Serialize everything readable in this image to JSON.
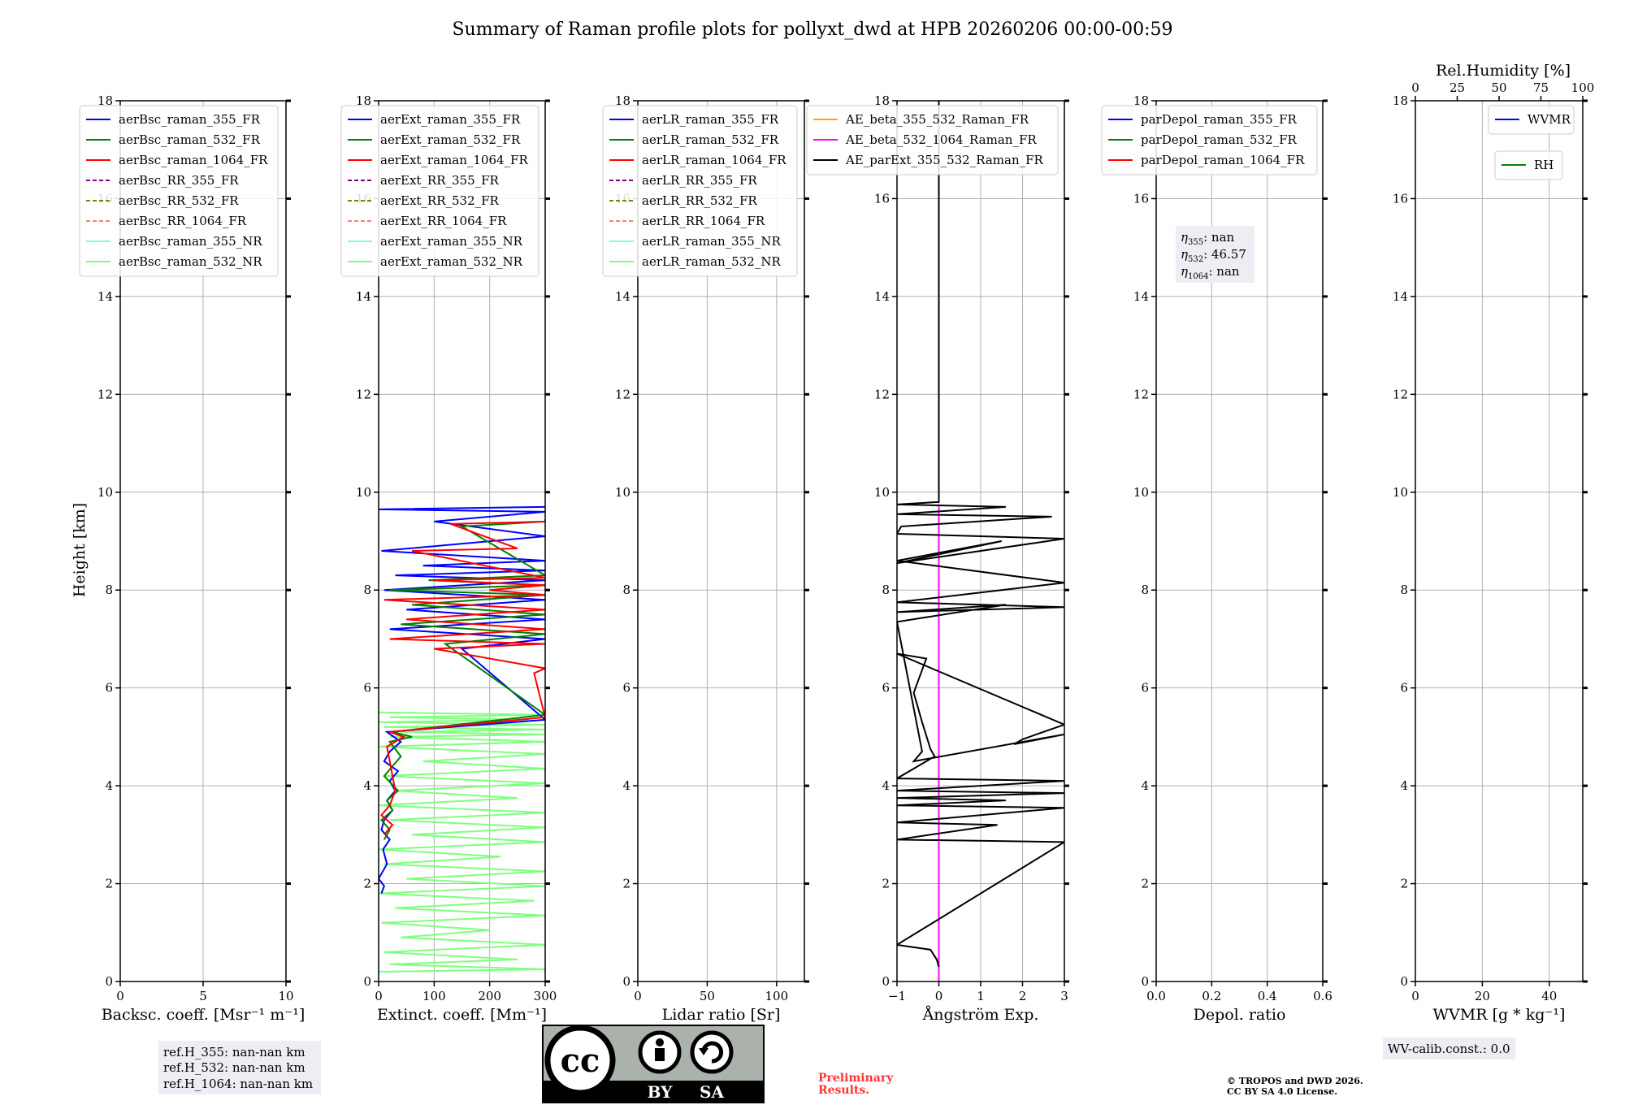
{
  "title": "Summary of Raman profile plots for pollyxt_dwd at HPB 20260206 00:00-00:59",
  "y_label": "Height [km]",
  "colors": {
    "blue": "#0000ff",
    "green": "#008000",
    "red": "#ff0000",
    "purple": "#800080",
    "olive": "#808000",
    "salmon": "#fa8072",
    "cyan": "#7fffd4",
    "lightgreen": "#7fff7f",
    "orange": "#ffa500",
    "magenta": "#ff00ff",
    "black": "#000000",
    "prelim": "#ff3333"
  },
  "chart_data": [
    {
      "type": "line",
      "xlabel": "Backsc. coeff. [Msr⁻¹ m⁻¹]",
      "xlim": [
        0,
        10
      ],
      "ylim": [
        0,
        18
      ],
      "xticks": [
        "0",
        "5",
        "10"
      ],
      "yticks": [
        "0",
        "2",
        "4",
        "6",
        "8",
        "10",
        "12",
        "14",
        "16",
        "18"
      ],
      "legend": [
        {
          "label": "aerBsc_raman_355_FR",
          "color": "blue",
          "dash": false
        },
        {
          "label": "aerBsc_raman_532_FR",
          "color": "green",
          "dash": false
        },
        {
          "label": "aerBsc_raman_1064_FR",
          "color": "red",
          "dash": false
        },
        {
          "label": "aerBsc_RR_355_FR",
          "color": "purple",
          "dash": true
        },
        {
          "label": "aerBsc_RR_532_FR",
          "color": "olive",
          "dash": true
        },
        {
          "label": "aerBsc_RR_1064_FR",
          "color": "salmon",
          "dash": true
        },
        {
          "label": "aerBsc_raman_355_NR",
          "color": "cyan",
          "dash": false
        },
        {
          "label": "aerBsc_raman_532_NR",
          "color": "lightgreen",
          "dash": false
        }
      ],
      "series": []
    },
    {
      "type": "line",
      "xlabel": "Extinct. coeff. [Mm⁻¹]",
      "xlim": [
        0,
        300
      ],
      "ylim": [
        0,
        18
      ],
      "xticks": [
        "0",
        "100",
        "200",
        "300"
      ],
      "yticks": [
        "0",
        "2",
        "4",
        "6",
        "8",
        "10",
        "12",
        "14",
        "16",
        "18"
      ],
      "legend": [
        {
          "label": "aerExt_raman_355_FR",
          "color": "blue",
          "dash": false
        },
        {
          "label": "aerExt_raman_532_FR",
          "color": "green",
          "dash": false
        },
        {
          "label": "aerExt_raman_1064_FR",
          "color": "red",
          "dash": false
        },
        {
          "label": "aerExt_RR_355_FR",
          "color": "purple",
          "dash": true
        },
        {
          "label": "aerExt_RR_532_FR",
          "color": "olive",
          "dash": true
        },
        {
          "label": "aerExt_RR_1064_FR",
          "color": "salmon",
          "dash": true
        },
        {
          "label": "aerExt_raman_355_NR",
          "color": "cyan",
          "dash": false
        },
        {
          "label": "aerExt_raman_532_NR",
          "color": "lightgreen",
          "dash": false
        }
      ],
      "series": [
        {
          "name": "aerExt_raman_532_NR",
          "color": "lightgreen",
          "x": [
            0,
            300,
            20,
            250,
            10,
            300,
            40,
            200,
            5,
            300,
            30,
            280,
            0,
            300,
            50,
            300,
            10,
            220,
            0,
            300,
            60,
            300,
            20,
            300,
            0,
            250,
            30,
            300,
            10,
            300,
            80,
            300,
            0,
            300,
            20,
            300,
            40,
            300,
            10,
            300,
            0,
            270,
            20,
            300,
            0
          ],
          "y": [
            0.2,
            0.25,
            0.35,
            0.45,
            0.6,
            0.75,
            0.9,
            1.05,
            1.2,
            1.35,
            1.5,
            1.65,
            1.8,
            1.95,
            2.1,
            2.25,
            2.4,
            2.55,
            2.7,
            2.85,
            3.0,
            3.15,
            3.3,
            3.45,
            3.6,
            3.75,
            3.9,
            4.05,
            4.2,
            4.35,
            4.5,
            4.65,
            4.8,
            4.9,
            5.0,
            5.05,
            5.1,
            5.15,
            5.2,
            5.25,
            5.3,
            5.35,
            5.4,
            5.45,
            5.5
          ]
        },
        {
          "name": "aerExt_raman_355_FR",
          "color": "blue",
          "x": [
            5,
            10,
            0,
            15,
            8,
            20,
            5,
            10,
            25,
            15,
            30,
            20,
            35,
            10,
            20,
            40,
            15,
            300,
            150,
            300,
            20,
            300,
            50,
            300,
            10,
            300,
            30,
            300,
            80,
            300,
            5,
            300,
            100,
            300,
            0,
            300
          ],
          "y": [
            1.8,
            1.95,
            2.1,
            2.4,
            2.7,
            2.9,
            3.1,
            3.3,
            3.5,
            3.7,
            3.9,
            4.1,
            4.3,
            4.5,
            4.7,
            4.9,
            5.1,
            5.35,
            6.8,
            7.0,
            7.2,
            7.4,
            7.6,
            7.8,
            8.0,
            8.2,
            8.3,
            8.4,
            8.5,
            8.6,
            8.8,
            9.1,
            9.4,
            9.6,
            9.65,
            9.7
          ]
        },
        {
          "name": "aerExt_raman_532_FR",
          "color": "green",
          "x": [
            10,
            20,
            5,
            25,
            15,
            35,
            10,
            40,
            20,
            60,
            25,
            300,
            120,
            300,
            40,
            300,
            60,
            300,
            20,
            300,
            90,
            300,
            150,
            300
          ],
          "y": [
            2.9,
            3.1,
            3.3,
            3.5,
            3.7,
            3.9,
            4.2,
            4.6,
            4.9,
            5.0,
            5.1,
            5.45,
            6.9,
            7.1,
            7.3,
            7.5,
            7.7,
            7.9,
            8.0,
            8.1,
            8.2,
            8.3,
            9.3,
            9.4
          ]
        },
        {
          "name": "aerExt_raman_1064_FR",
          "color": "red",
          "x": [
            10,
            25,
            5,
            20,
            30,
            15,
            45,
            20,
            300,
            280,
            300,
            100,
            300,
            20,
            300,
            50,
            300,
            10,
            300,
            200,
            300,
            100,
            300,
            60,
            250,
            130,
            300,
            300
          ],
          "y": [
            3.0,
            3.2,
            3.4,
            3.6,
            3.9,
            4.8,
            5.0,
            5.1,
            5.4,
            6.3,
            6.4,
            6.8,
            6.9,
            7.0,
            7.2,
            7.4,
            7.6,
            7.8,
            7.9,
            8.0,
            8.1,
            8.2,
            8.25,
            8.8,
            8.85,
            9.35,
            9.4,
            9.45
          ]
        }
      ]
    },
    {
      "type": "line",
      "xlabel": "Lidar ratio [Sr]",
      "xlim": [
        0,
        120
      ],
      "ylim": [
        0,
        18
      ],
      "xticks": [
        "0",
        "50",
        "100"
      ],
      "yticks": [
        "0",
        "2",
        "4",
        "6",
        "8",
        "10",
        "12",
        "14",
        "16",
        "18"
      ],
      "legend": [
        {
          "label": "aerLR_raman_355_FR",
          "color": "blue",
          "dash": false
        },
        {
          "label": "aerLR_raman_532_FR",
          "color": "green",
          "dash": false
        },
        {
          "label": "aerLR_raman_1064_FR",
          "color": "red",
          "dash": false
        },
        {
          "label": "aerLR_RR_355_FR",
          "color": "purple",
          "dash": true
        },
        {
          "label": "aerLR_RR_532_FR",
          "color": "olive",
          "dash": true
        },
        {
          "label": "aerLR_RR_1064_FR",
          "color": "salmon",
          "dash": true
        },
        {
          "label": "aerLR_raman_355_NR",
          "color": "cyan",
          "dash": false
        },
        {
          "label": "aerLR_raman_532_NR",
          "color": "lightgreen",
          "dash": false
        }
      ],
      "series": []
    },
    {
      "type": "line",
      "xlabel": "Ångström Exp.",
      "xlim": [
        -1,
        3
      ],
      "ylim": [
        0,
        18
      ],
      "xticks": [
        "−1",
        "0",
        "1",
        "2",
        "3"
      ],
      "yticks": [
        "0",
        "2",
        "4",
        "6",
        "8",
        "10",
        "12",
        "14",
        "16",
        "18"
      ],
      "legend": [
        {
          "label": "AE_beta_355_532_Raman_FR",
          "color": "orange",
          "dash": false
        },
        {
          "label": "AE_beta_532_1064_Raman_FR",
          "color": "magenta",
          "dash": false
        },
        {
          "label": "AE_parExt_355_532_Raman_FR",
          "color": "black",
          "dash": false
        }
      ],
      "series": [
        {
          "name": "AE_beta_532_1064_Raman_FR",
          "color": "magenta",
          "x": [
            0,
            0
          ],
          "y": [
            0,
            9.75
          ]
        },
        {
          "name": "AE_parExt_355_532_Raman_FR",
          "color": "black",
          "x": [
            0,
            -0.05,
            -0.2,
            -1,
            3,
            -1,
            1.4,
            -1,
            3,
            -1,
            1.6,
            -1,
            3,
            -1,
            3,
            -1,
            -0.3,
            -0.1,
            -0.2,
            -0.4,
            -0.6,
            -0.3,
            -1,
            3,
            2,
            1.8,
            3,
            -0.6,
            -0.4,
            -1,
            1.6,
            -1,
            3,
            -1,
            3,
            -1,
            1.5,
            -1,
            3,
            -1,
            -0.9,
            2.7,
            -1,
            1.6,
            -1,
            0,
            0,
            0
          ],
          "y": [
            0.3,
            0.45,
            0.65,
            0.75,
            2.85,
            2.9,
            3.2,
            3.25,
            3.55,
            3.6,
            3.7,
            3.75,
            3.85,
            3.9,
            4.1,
            4.15,
            4.5,
            4.6,
            4.75,
            5.3,
            5.9,
            6.6,
            6.7,
            5.25,
            4.95,
            4.85,
            5.05,
            4.5,
            4.7,
            7.35,
            7.7,
            7.55,
            7.65,
            7.75,
            8.15,
            8.6,
            9.0,
            8.55,
            9.05,
            9.15,
            9.3,
            9.5,
            9.55,
            9.7,
            9.75,
            9.8,
            17,
            18
          ]
        }
      ]
    },
    {
      "type": "line",
      "xlabel": "Depol. ratio",
      "xlim": [
        0,
        0.6
      ],
      "ylim": [
        0,
        18
      ],
      "xticks": [
        "0.0",
        "0.2",
        "0.4",
        "0.6"
      ],
      "yticks": [
        "0",
        "2",
        "4",
        "6",
        "8",
        "10",
        "12",
        "14",
        "16",
        "18"
      ],
      "legend": [
        {
          "label": "parDepol_raman_355_FR",
          "color": "blue",
          "dash": false
        },
        {
          "label": "parDepol_raman_532_FR",
          "color": "green",
          "dash": false
        },
        {
          "label": "parDepol_raman_1064_FR",
          "color": "red",
          "dash": false
        }
      ],
      "series": []
    },
    {
      "type": "line",
      "xlabel": "WVMR [g * kg⁻¹]",
      "xlim": [
        0,
        50
      ],
      "ylim": [
        0,
        18
      ],
      "xticks": [
        "0",
        "20",
        "40"
      ],
      "yticks": [
        "0",
        "2",
        "4",
        "6",
        "8",
        "10",
        "12",
        "14",
        "16",
        "18"
      ],
      "top_xlabel": "Rel.Humidity [%]",
      "top_xticks": [
        "0",
        "25",
        "50",
        "75",
        "100"
      ],
      "legend": [
        {
          "label": "WVMR",
          "color": "blue",
          "dash": false
        }
      ],
      "legend2": [
        {
          "label": "RH",
          "color": "green",
          "dash": false
        }
      ],
      "series": []
    }
  ],
  "notes": {
    "eta_355": "nan",
    "eta_532": "46.57",
    "eta_1064": "nan",
    "refh_355": "ref.H_355: nan-nan km",
    "refh_532": "ref.H_532: nan-nan km",
    "refh_1064": "ref.H_1064: nan-nan km",
    "wv_calib": "WV-calib.const.: 0.0",
    "preliminary_1": "Preliminary",
    "preliminary_2": "Results.",
    "copyright_1": "© TROPOS and DWD 2026.",
    "copyright_2": "CC BY SA 4.0 License.",
    "cc_logo": "cc",
    "cc_by": "BY",
    "cc_sa": "SA"
  }
}
